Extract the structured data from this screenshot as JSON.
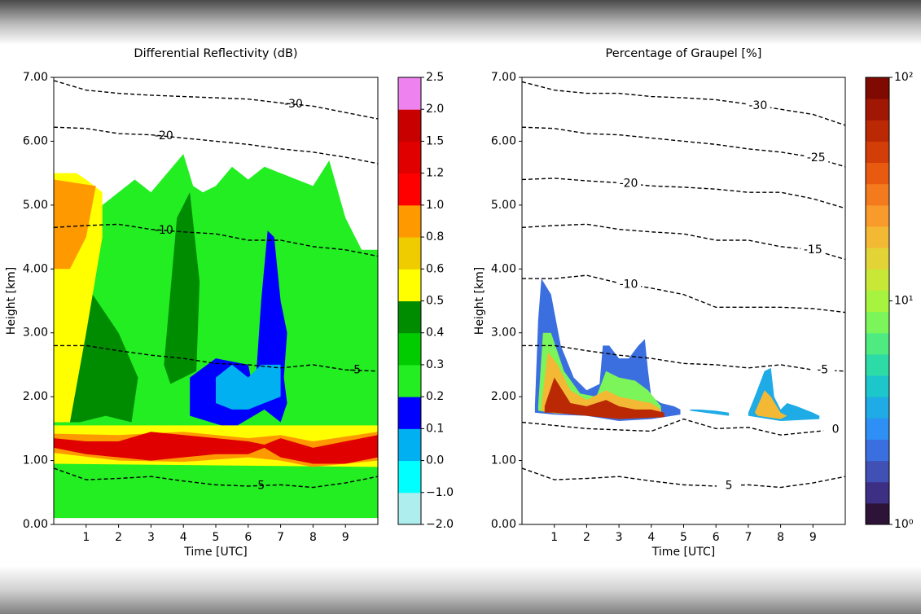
{
  "chart_data": [
    {
      "type": "heatmap",
      "title": "Differential Reflectivity (dB)",
      "xlabel": "Time [UTC]",
      "ylabel": "Height [km]",
      "xlim": [
        0,
        10
      ],
      "ylim": [
        0,
        7
      ],
      "xticks": [
        1,
        2,
        3,
        4,
        5,
        6,
        7,
        8,
        9
      ],
      "yticks": [
        {
          "value": 0,
          "label": "0.00"
        },
        {
          "value": 1,
          "label": "1.00"
        },
        {
          "value": 2,
          "label": "2.00"
        },
        {
          "value": 3,
          "label": "3.00"
        },
        {
          "value": 4,
          "label": "4.00"
        },
        {
          "value": 5,
          "label": "5.00"
        },
        {
          "value": 6,
          "label": "6.00"
        },
        {
          "value": 7,
          "label": "7.00"
        }
      ],
      "colorbar": {
        "log": false,
        "ticks": [
          {
            "value": -2,
            "label": "−2.0"
          },
          {
            "value": -1,
            "label": "−1.0"
          },
          {
            "value": 0,
            "label": "0.0"
          },
          0.1,
          0.2,
          0.3,
          0.4,
          0.5,
          0.6,
          0.8,
          {
            "value": 1,
            "label": "1.0"
          },
          1.2,
          1.5,
          {
            "value": 2,
            "label": "2.0"
          },
          2.5
        ],
        "colors": [
          "#afeeee",
          "#00ffff",
          "#00b0f0",
          "#0000ff",
          "#22ee22",
          "#00cc00",
          "#008c00",
          "#ffff00",
          "#eecc00",
          "#ff9900",
          "#ff0000",
          "#e00000",
          "#c80000",
          "#ee82ee"
        ]
      },
      "regions": [
        {
          "value": 0.25,
          "time": [
            0,
            0,
            0.5,
            1,
            1.5,
            2,
            2.5,
            3,
            3.5,
            4,
            4.3,
            4.6,
            5,
            5.5,
            6,
            6.5,
            7,
            7.5,
            8,
            8.5,
            9,
            9.5,
            10,
            10
          ],
          "height": [
            0.1,
            5.4,
            5.4,
            4,
            5,
            5.2,
            5.4,
            5.2,
            5.5,
            5.8,
            5.3,
            5.2,
            5.3,
            5.6,
            5.4,
            5.6,
            5.5,
            5.4,
            5.3,
            5.7,
            4.8,
            4.3,
            4.3,
            0.1
          ]
        },
        {
          "value": 0.45,
          "time": [
            0.3,
            0.6,
            1.2,
            2,
            2.6,
            2.4,
            1.6,
            0.8
          ],
          "height": [
            1.6,
            4.1,
            3.6,
            3.0,
            2.3,
            1.6,
            1.7,
            1.6
          ]
        },
        {
          "value": 0.45,
          "time": [
            3.4,
            3.8,
            4.2,
            4.5,
            4.4,
            3.6
          ],
          "height": [
            2.5,
            4.8,
            5.2,
            3.8,
            2.4,
            2.2
          ]
        },
        {
          "value": 0.55,
          "time": [
            0,
            0,
            0.7,
            1,
            1.5,
            1.5,
            1,
            0.5
          ],
          "height": [
            1.6,
            5.5,
            5.5,
            5.4,
            5.2,
            4.5,
            3,
            1.6
          ]
        },
        {
          "value": 0.9,
          "time": [
            0,
            0,
            1.3,
            1,
            0.5
          ],
          "height": [
            4.0,
            5.4,
            5.3,
            4.5,
            4.0
          ]
        },
        {
          "value": 0.15,
          "time": [
            6.2,
            6.4,
            6.6,
            6.8,
            7,
            7.2,
            7.1,
            7.2,
            7,
            6.5,
            5.5,
            4.2,
            4.2,
            5,
            6,
            6.2
          ],
          "height": [
            2.0,
            3.5,
            4.6,
            4.5,
            3.5,
            3.0,
            2.3,
            1.9,
            1.6,
            1.8,
            1.5,
            1.7,
            2.3,
            2.6,
            2.5,
            2.0
          ]
        },
        {
          "value": 0.05,
          "time": [
            5,
            5,
            5.5,
            6,
            6.4,
            7,
            7,
            6.5,
            6,
            5.5
          ],
          "height": [
            1.9,
            2.3,
            2.5,
            2.3,
            2.5,
            2.5,
            2.0,
            1.9,
            1.8,
            1.8
          ]
        },
        {
          "value": 0.55,
          "time": [
            0,
            10,
            10,
            0
          ],
          "height": [
            0.95,
            0.9,
            1.55,
            1.55
          ]
        },
        {
          "value": 0.9,
          "time": [
            0,
            2,
            4,
            6,
            7,
            8,
            10,
            10,
            8,
            7,
            6,
            4,
            2,
            0
          ],
          "height": [
            1.12,
            1.0,
            0.98,
            1.05,
            1.0,
            0.9,
            1.0,
            1.45,
            1.3,
            1.4,
            1.35,
            1.45,
            1.4,
            1.42
          ]
        },
        {
          "value": 1.3,
          "time": [
            0,
            1,
            2,
            3,
            4,
            5,
            6,
            6.5,
            7,
            8,
            9,
            10,
            10,
            9,
            8,
            7,
            6.5,
            6,
            5,
            4,
            3,
            2,
            1,
            0
          ],
          "height": [
            1.2,
            1.1,
            1.05,
            1.0,
            1.05,
            1.1,
            1.1,
            1.2,
            1.05,
            0.95,
            0.95,
            1.05,
            1.4,
            1.3,
            1.2,
            1.35,
            1.25,
            1.3,
            1.35,
            1.4,
            1.45,
            1.3,
            1.3,
            1.35
          ]
        }
      ],
      "isotherms": [
        {
          "label": -30,
          "time": [
            0,
            1,
            2,
            3,
            4,
            5,
            6,
            7,
            8,
            9,
            10
          ],
          "height": [
            6.95,
            6.8,
            6.75,
            6.72,
            6.7,
            6.68,
            6.66,
            6.6,
            6.55,
            6.45,
            6.35
          ]
        },
        {
          "label": -20,
          "time": [
            0,
            1,
            2,
            3,
            4,
            5,
            6,
            7,
            8,
            9,
            10
          ],
          "height": [
            6.22,
            6.2,
            6.12,
            6.1,
            6.05,
            6.0,
            5.95,
            5.88,
            5.83,
            5.75,
            5.65
          ]
        },
        {
          "label": -10,
          "time": [
            0,
            1,
            2,
            3,
            4,
            5,
            6,
            7,
            8,
            9,
            10
          ],
          "height": [
            4.65,
            4.68,
            4.7,
            4.62,
            4.58,
            4.55,
            4.45,
            4.45,
            4.35,
            4.3,
            4.2
          ]
        },
        {
          "label": -5,
          "time": [
            0,
            1,
            2,
            3,
            4,
            5,
            6,
            7,
            8,
            9,
            10
          ],
          "height": [
            2.8,
            2.8,
            2.72,
            2.65,
            2.6,
            2.52,
            2.5,
            2.45,
            2.5,
            2.42,
            2.4
          ]
        },
        {
          "label": 5,
          "time": [
            0,
            1,
            2,
            3,
            4,
            5,
            6,
            7,
            8,
            9,
            10
          ],
          "height": [
            0.88,
            0.7,
            0.72,
            0.75,
            0.68,
            0.62,
            0.6,
            0.62,
            0.58,
            0.65,
            0.75
          ]
        }
      ]
    },
    {
      "type": "heatmap",
      "title": "Percentage of Graupel [%]",
      "xlabel": "Time [UTC]",
      "ylabel": "Height [km]",
      "xlim": [
        0,
        10
      ],
      "ylim": [
        0,
        7
      ],
      "xticks": [
        1,
        2,
        3,
        4,
        5,
        6,
        7,
        8,
        9
      ],
      "yticks": [
        {
          "value": 0,
          "label": "0.00"
        },
        {
          "value": 1,
          "label": "1.00"
        },
        {
          "value": 2,
          "label": "2.00"
        },
        {
          "value": 3,
          "label": "3.00"
        },
        {
          "value": 4,
          "label": "4.00"
        },
        {
          "value": 5,
          "label": "5.00"
        },
        {
          "value": 6,
          "label": "6.00"
        },
        {
          "value": 7,
          "label": "7.00"
        }
      ],
      "colorbar": {
        "log": true,
        "lim": [
          1,
          100
        ],
        "ticks": [
          {
            "value": 1,
            "label": "10⁰"
          },
          {
            "value": 10,
            "label": "10¹"
          },
          {
            "value": 100,
            "label": "10²"
          }
        ],
        "colors": [
          "#2d1338",
          "#3d2f83",
          "#4150b5",
          "#3b6fe0",
          "#2e8ff5",
          "#1eabe6",
          "#1dc6cb",
          "#2ddba7",
          "#4eeb80",
          "#7cf55a",
          "#a6f43f",
          "#c7e837",
          "#e2d436",
          "#f3b934",
          "#f99a2c",
          "#f47a1e",
          "#e75a10",
          "#d33e08",
          "#bb2804",
          "#a01703",
          "#7e0a02"
        ]
      },
      "regions": [
        {
          "value": 2,
          "time": [
            0.4,
            0.5,
            0.6,
            0.9,
            1.2,
            1.6,
            2,
            2.4,
            2.5,
            2.7,
            3,
            3.3,
            3.6,
            3.8,
            3.9,
            4,
            4.3,
            4.7,
            4.9,
            4.9,
            4,
            3,
            2,
            1,
            0.4
          ],
          "height": [
            1.85,
            3.2,
            3.85,
            3.6,
            2.8,
            2.3,
            2.1,
            2.2,
            2.8,
            2.8,
            2.6,
            2.6,
            2.8,
            2.9,
            2.4,
            2.0,
            1.9,
            1.85,
            1.8,
            1.72,
            1.65,
            1.62,
            1.7,
            1.72,
            1.75
          ]
        },
        {
          "value": 8,
          "time": [
            0.5,
            0.65,
            0.9,
            1.3,
            1.8,
            2.3,
            2.6,
            3,
            3.5,
            3.9,
            4.3,
            4.3,
            3,
            2,
            1,
            0.5
          ],
          "height": [
            1.85,
            3.0,
            3.0,
            2.4,
            2.05,
            2.0,
            2.4,
            2.3,
            2.25,
            2.1,
            1.85,
            1.72,
            1.66,
            1.72,
            1.74,
            1.78
          ]
        },
        {
          "value": 20,
          "time": [
            0.6,
            0.8,
            1.1,
            1.5,
            2,
            2.6,
            3,
            3.5,
            4,
            4.3,
            4.3,
            3,
            2,
            1,
            0.6
          ],
          "height": [
            1.85,
            2.7,
            2.5,
            2.1,
            1.95,
            2.1,
            2.0,
            1.95,
            1.9,
            1.8,
            1.7,
            1.66,
            1.72,
            1.74,
            1.78
          ]
        },
        {
          "value": 60,
          "time": [
            0.7,
            1,
            1.5,
            2,
            2.6,
            3,
            3.5,
            4,
            4.4,
            4.4,
            3,
            2,
            1,
            0.7
          ],
          "height": [
            1.85,
            2.3,
            1.9,
            1.85,
            1.95,
            1.85,
            1.8,
            1.8,
            1.75,
            1.68,
            1.65,
            1.7,
            1.75,
            1.75
          ]
        },
        {
          "value": 3,
          "time": [
            5.2,
            5.5,
            6,
            6.4,
            6.4,
            5.2
          ],
          "height": [
            1.8,
            1.8,
            1.78,
            1.75,
            1.7,
            1.78
          ]
        },
        {
          "value": 3,
          "time": [
            7.0,
            7.2,
            7.5,
            7.7,
            7.8,
            8.0,
            8.2,
            8.5,
            9,
            9.2,
            9.2,
            8,
            7
          ],
          "height": [
            1.75,
            2.0,
            2.4,
            2.45,
            2.0,
            1.8,
            1.9,
            1.85,
            1.75,
            1.7,
            1.65,
            1.62,
            1.7
          ]
        },
        {
          "value": 20,
          "time": [
            7.2,
            7.5,
            7.7,
            8,
            8.2,
            8,
            7.3
          ],
          "height": [
            1.75,
            2.1,
            2.0,
            1.75,
            1.7,
            1.65,
            1.7
          ]
        }
      ],
      "isotherms": [
        {
          "label": -30,
          "time": [
            0,
            1,
            2,
            3,
            4,
            5,
            6,
            7,
            8,
            9,
            10
          ],
          "height": [
            6.93,
            6.8,
            6.75,
            6.75,
            6.7,
            6.68,
            6.65,
            6.58,
            6.5,
            6.42,
            6.25
          ]
        },
        {
          "label": -25,
          "time": [
            0,
            1,
            2,
            3,
            4,
            5,
            6,
            7,
            8,
            9,
            10
          ],
          "height": [
            6.22,
            6.2,
            6.12,
            6.1,
            6.05,
            6.0,
            5.95,
            5.88,
            5.83,
            5.75,
            5.6
          ]
        },
        {
          "label": -20,
          "time": [
            0,
            1,
            2,
            3,
            4,
            5,
            6,
            7,
            8,
            9,
            10
          ],
          "height": [
            5.4,
            5.42,
            5.38,
            5.35,
            5.3,
            5.28,
            5.25,
            5.2,
            5.2,
            5.1,
            4.95
          ]
        },
        {
          "label": -15,
          "time": [
            0,
            1,
            2,
            3,
            4,
            5,
            6,
            7,
            8,
            9,
            10
          ],
          "height": [
            4.65,
            4.68,
            4.7,
            4.62,
            4.58,
            4.55,
            4.45,
            4.45,
            4.35,
            4.3,
            4.15
          ]
        },
        {
          "label": -10,
          "time": [
            0,
            1,
            2,
            3,
            4,
            5,
            6,
            7,
            8,
            9,
            10
          ],
          "height": [
            3.85,
            3.85,
            3.9,
            3.78,
            3.7,
            3.6,
            3.4,
            3.4,
            3.4,
            3.38,
            3.32
          ]
        },
        {
          "label": -5,
          "time": [
            0,
            1,
            2,
            3,
            4,
            5,
            6,
            7,
            8,
            9,
            10
          ],
          "height": [
            2.8,
            2.8,
            2.72,
            2.65,
            2.6,
            2.52,
            2.5,
            2.45,
            2.5,
            2.42,
            2.4
          ]
        },
        {
          "label": 0,
          "time": [
            0,
            1,
            2,
            3,
            4,
            5,
            6,
            7,
            8,
            9,
            10
          ],
          "height": [
            1.6,
            1.55,
            1.5,
            1.48,
            1.46,
            1.65,
            1.5,
            1.52,
            1.4,
            1.45,
            1.5
          ]
        },
        {
          "label": 5,
          "time": [
            0,
            1,
            2,
            3,
            4,
            5,
            6,
            7,
            8,
            9,
            10
          ],
          "height": [
            0.88,
            0.7,
            0.72,
            0.75,
            0.68,
            0.62,
            0.6,
            0.62,
            0.58,
            0.65,
            0.75
          ]
        }
      ]
    }
  ]
}
